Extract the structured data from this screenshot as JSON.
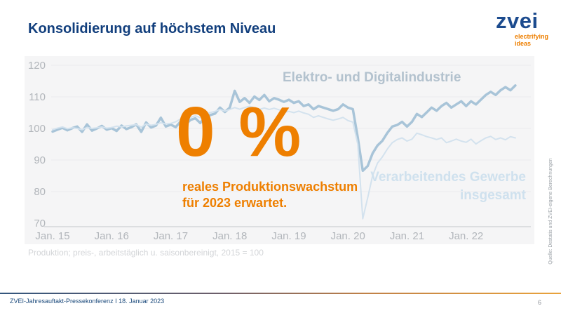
{
  "slide": {
    "title": "Konsolidierung auf höchstem Niveau",
    "footnote": "Produktion; preis-, arbeitstäglich u. saisonbereinigt, 2015 = 100",
    "source_note": "Quelle: Destatis und ZVEI-eigene Berechnungen",
    "footer": "ZVEI-Jahresauftakt-Pressekonferenz I 18. Januar 2023",
    "page_number": "6"
  },
  "logo": {
    "name": "zvei",
    "tagline_line1": "electrifying",
    "tagline_line2": "ideas"
  },
  "annotation": {
    "headline": "0 %",
    "line1": "reales Produktionswachstum",
    "line2": "für 2023 erwartet."
  },
  "colors": {
    "title_blue": "#123f7d",
    "logo_blue": "#1c4b8e",
    "accent_orange": "#ee7f00",
    "panel_bg": "#f5f5f6",
    "series1_line": "#a8c4d8",
    "series2_line": "#d3e2ee",
    "series1_label": "#b3c2ce",
    "series2_label": "#cfe1ee",
    "axis_text": "#b2b6bb",
    "gridline": "#ebebed",
    "axis_line": "#d4d6d9"
  },
  "chart_data": {
    "type": "line",
    "title": "",
    "xlabel": "",
    "ylabel": "",
    "ylim": [
      70,
      120
    ],
    "yticks": [
      70,
      80,
      90,
      100,
      110,
      120
    ],
    "grid": true,
    "legend_position": "inline-labels",
    "x_axis": {
      "start": "2015-01",
      "interval": "monthly",
      "tick_labels": [
        "Jan. 15",
        "Jan. 16",
        "Jan. 17",
        "Jan. 18",
        "Jan. 19",
        "Jan. 20",
        "Jan. 21",
        "Jan. 22"
      ]
    },
    "series": [
      {
        "name": "Elektro- und Digitalindustrie",
        "color": "#a8c4d8",
        "values": [
          99.0,
          99.6,
          100.2,
          99.4,
          100.1,
          100.6,
          98.9,
          101.3,
          99.3,
          100.0,
          100.8,
          99.6,
          100.1,
          99.2,
          100.9,
          99.8,
          100.4,
          101.3,
          98.9,
          101.9,
          100.3,
          100.9,
          103.4,
          100.6,
          101.2,
          100.4,
          102.2,
          101.2,
          102.7,
          103.2,
          101.7,
          103.7,
          104.2,
          104.7,
          106.6,
          105.2,
          106.6,
          111.9,
          108.4,
          109.6,
          108.1,
          110.1,
          109.0,
          110.6,
          108.6,
          109.6,
          109.1,
          108.4,
          109.1,
          108.1,
          108.6,
          107.1,
          107.6,
          106.1,
          107.1,
          106.6,
          106.1,
          105.6,
          106.1,
          107.6,
          106.6,
          106.1,
          97.1,
          86.6,
          88.1,
          92.1,
          94.6,
          96.1,
          98.6,
          100.6,
          101.1,
          102.1,
          100.6,
          102.1,
          104.6,
          103.6,
          105.1,
          106.6,
          105.6,
          107.1,
          108.1,
          106.6,
          107.6,
          108.6,
          107.1,
          108.6,
          107.6,
          109.1,
          110.6,
          111.6,
          110.6,
          112.1,
          113.1,
          112.1,
          113.6
        ]
      },
      {
        "name": "Verarbeitendes Gewerbe insgesamt",
        "color": "#d3e2ee",
        "values": [
          99.6,
          100.1,
          100.5,
          99.9,
          100.2,
          100.0,
          99.6,
          100.3,
          100.0,
          100.2,
          100.5,
          100.1,
          100.3,
          100.7,
          100.5,
          100.8,
          101.0,
          101.2,
          100.4,
          101.4,
          101.0,
          101.3,
          101.8,
          101.4,
          101.6,
          102.1,
          103.0,
          102.6,
          103.5,
          104.0,
          103.4,
          104.5,
          105.0,
          105.4,
          106.0,
          105.5,
          106.0,
          106.6,
          106.1,
          106.6,
          107.0,
          106.5,
          106.0,
          106.5,
          106.0,
          106.4,
          105.9,
          105.0,
          105.4,
          105.0,
          105.5,
          104.9,
          104.5,
          103.5,
          104.0,
          103.5,
          103.0,
          102.6,
          103.0,
          103.5,
          102.5,
          102.0,
          95.0,
          71.4,
          78.0,
          85.0,
          89.0,
          91.0,
          93.5,
          95.5,
          96.5,
          97.0,
          96.0,
          96.6,
          98.5,
          98.0,
          97.4,
          97.0,
          96.5,
          97.0,
          95.5,
          96.0,
          96.6,
          96.0,
          95.6,
          96.6,
          95.1,
          96.1,
          97.0,
          97.5,
          96.5,
          97.0,
          96.4,
          97.4,
          97.0
        ]
      }
    ]
  }
}
